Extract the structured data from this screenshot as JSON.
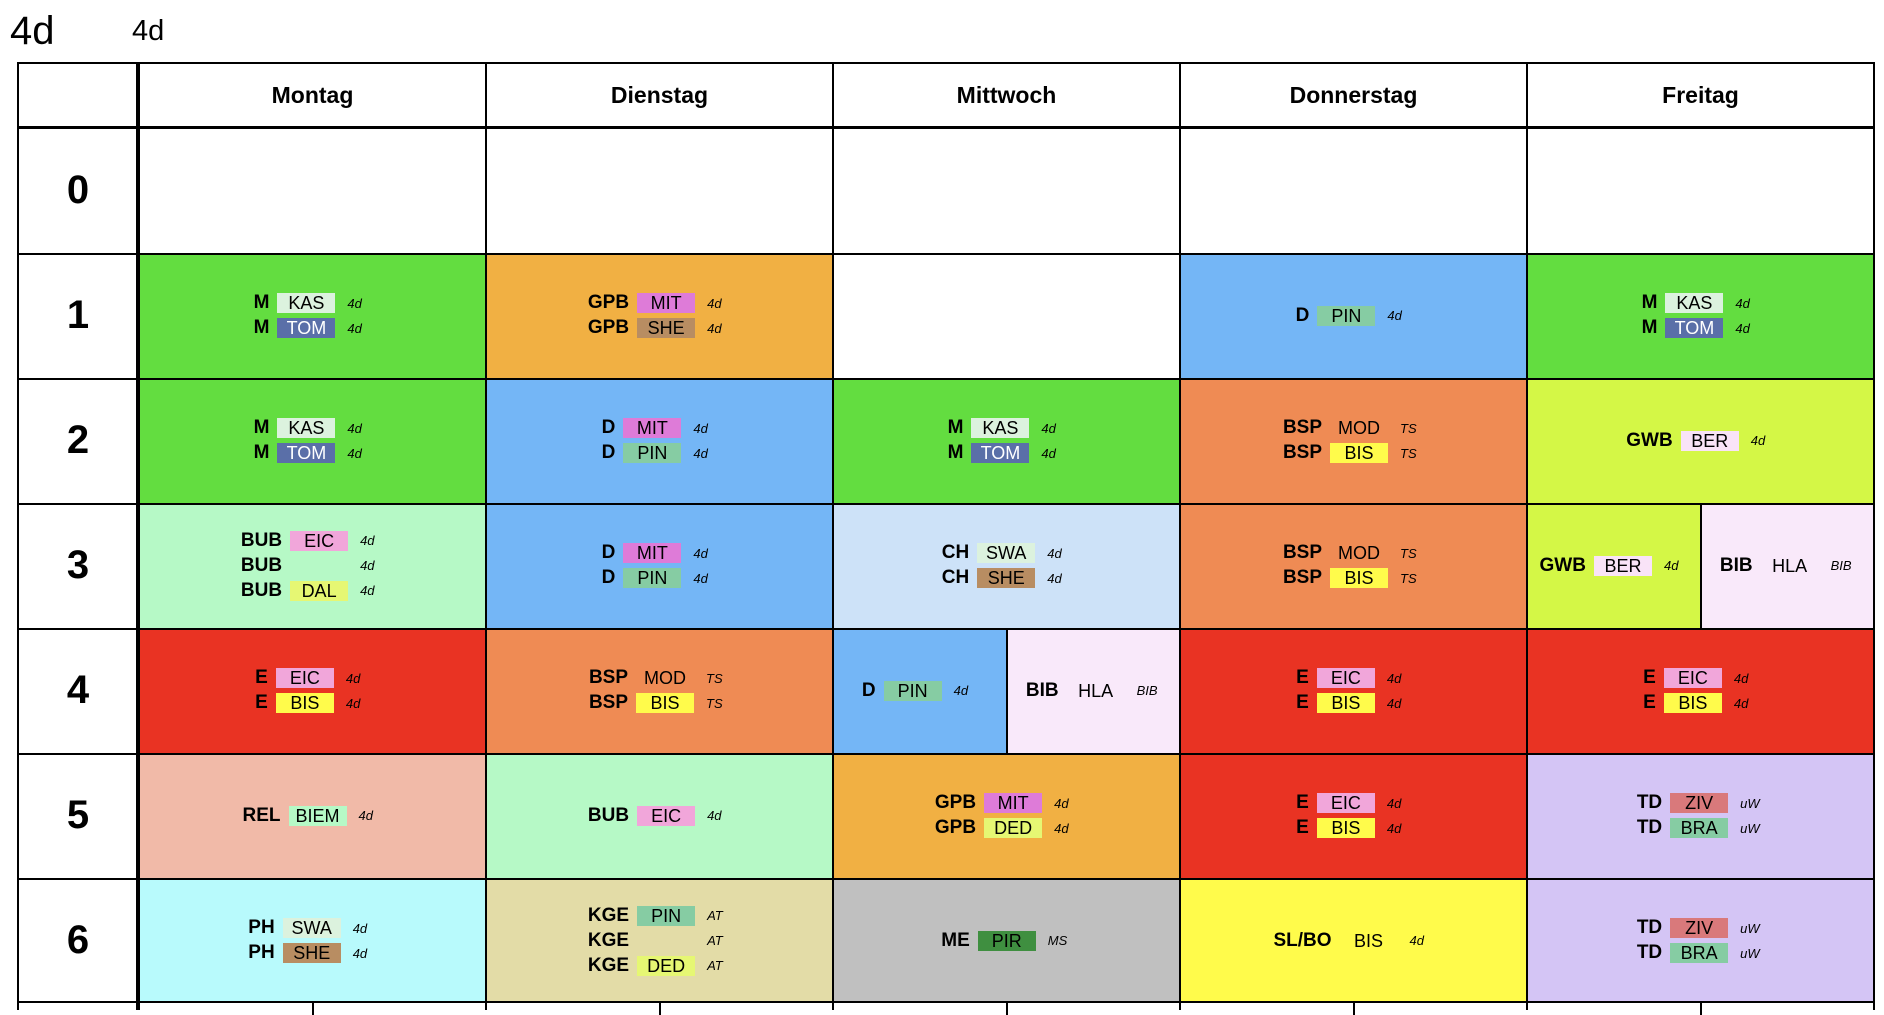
{
  "header": {
    "class_big": "4d",
    "class_small": "4d"
  },
  "days": [
    "Montag",
    "Dienstag",
    "Mittwoch",
    "Donnerstag",
    "Freitag"
  ],
  "periods": [
    "0",
    "1",
    "2",
    "3",
    "4",
    "5",
    "6"
  ],
  "colors": {
    "math_green": "#63dd40",
    "gpb_orange": "#f1b043",
    "deutsch_blue": "#74b6f6",
    "bsp_orange": "#ef8b54",
    "gwb_yellowgreen": "#d4f746",
    "bub_mint": "#b6f9c6",
    "ch_lightblue": "#cde2f8",
    "bib_pink": "#f9e9fa",
    "english_red": "#e93323",
    "rel_salmon": "#f1baa8",
    "td_lavender": "#d4c5f5",
    "ph_cyan": "#b8fafc",
    "kge_khaki": "#e3dca7",
    "me_grey": "#c0c0c0",
    "slbo_yellow": "#fffb4b"
  },
  "teacher_colors": {
    "KAS": "#dcf2de",
    "TOM": "#5a6fa8",
    "MIT": "#de7bd8",
    "SHE": "#b88d62",
    "PIN": "#86cca3",
    "EIC": "#f1a6da",
    "DAL": "#e6f773",
    "BIS": "#fffb4b",
    "SWA": "#dcf2de",
    "BER": "#f9e3f7",
    "BIEM": "#b6f9c6",
    "DED": "#e6f773",
    "ZIV": "#d9797b",
    "BRA": "#86cca3",
    "PIR": "#3f8f40",
    "MOD": "",
    "HLA": ""
  },
  "schedule": [
    [
      {
        "period": 0,
        "day": 0,
        "blocks": []
      },
      {
        "period": 0,
        "day": 1,
        "blocks": []
      },
      {
        "period": 0,
        "day": 2,
        "blocks": []
      },
      {
        "period": 0,
        "day": 3,
        "blocks": []
      },
      {
        "period": 0,
        "day": 4,
        "blocks": []
      }
    ],
    [
      {
        "period": 1,
        "day": 0,
        "blocks": [
          {
            "bg": "#63dd40",
            "lessons": [
              {
                "subject": "M",
                "teacher": "KAS",
                "group": "4d"
              },
              {
                "subject": "M",
                "teacher": "TOM",
                "group": "4d"
              }
            ]
          }
        ]
      },
      {
        "period": 1,
        "day": 1,
        "blocks": [
          {
            "bg": "#f1b043",
            "lessons": [
              {
                "subject": "GPB",
                "teacher": "MIT",
                "group": "4d"
              },
              {
                "subject": "GPB",
                "teacher": "SHE",
                "group": "4d"
              }
            ]
          }
        ]
      },
      {
        "period": 1,
        "day": 2,
        "blocks": []
      },
      {
        "period": 1,
        "day": 3,
        "blocks": [
          {
            "bg": "#74b6f6",
            "lessons": [
              {
                "subject": "D",
                "teacher": "PIN",
                "group": "4d"
              }
            ]
          }
        ]
      },
      {
        "period": 1,
        "day": 4,
        "blocks": [
          {
            "bg": "#63dd40",
            "lessons": [
              {
                "subject": "M",
                "teacher": "KAS",
                "group": "4d"
              },
              {
                "subject": "M",
                "teacher": "TOM",
                "group": "4d"
              }
            ]
          }
        ]
      }
    ],
    [
      {
        "period": 2,
        "day": 0,
        "blocks": [
          {
            "bg": "#63dd40",
            "lessons": [
              {
                "subject": "M",
                "teacher": "KAS",
                "group": "4d"
              },
              {
                "subject": "M",
                "teacher": "TOM",
                "group": "4d"
              }
            ]
          }
        ]
      },
      {
        "period": 2,
        "day": 1,
        "blocks": [
          {
            "bg": "#74b6f6",
            "lessons": [
              {
                "subject": "D",
                "teacher": "MIT",
                "group": "4d"
              },
              {
                "subject": "D",
                "teacher": "PIN",
                "group": "4d"
              }
            ]
          }
        ]
      },
      {
        "period": 2,
        "day": 2,
        "blocks": [
          {
            "bg": "#63dd40",
            "lessons": [
              {
                "subject": "M",
                "teacher": "KAS",
                "group": "4d"
              },
              {
                "subject": "M",
                "teacher": "TOM",
                "group": "4d"
              }
            ]
          }
        ]
      },
      {
        "period": 2,
        "day": 3,
        "blocks": [
          {
            "bg": "#ef8b54",
            "lessons": [
              {
                "subject": "BSP",
                "teacher": "MOD",
                "group": "TS"
              },
              {
                "subject": "BSP",
                "teacher": "BIS",
                "group": "TS"
              }
            ]
          }
        ]
      },
      {
        "period": 2,
        "day": 4,
        "blocks": [
          {
            "bg": "#d4f746",
            "lessons": [
              {
                "subject": "GWB",
                "teacher": "BER",
                "group": "4d"
              }
            ]
          }
        ]
      }
    ],
    [
      {
        "period": 3,
        "day": 0,
        "blocks": [
          {
            "bg": "#b6f9c6",
            "lessons": [
              {
                "subject": "BUB",
                "teacher": "EIC",
                "group": "4d"
              },
              {
                "subject": "BUB",
                "teacher": "",
                "group": "4d"
              },
              {
                "subject": "BUB",
                "teacher": "DAL",
                "group": "4d"
              }
            ]
          }
        ]
      },
      {
        "period": 3,
        "day": 1,
        "blocks": [
          {
            "bg": "#74b6f6",
            "lessons": [
              {
                "subject": "D",
                "teacher": "MIT",
                "group": "4d"
              },
              {
                "subject": "D",
                "teacher": "PIN",
                "group": "4d"
              }
            ]
          }
        ]
      },
      {
        "period": 3,
        "day": 2,
        "blocks": [
          {
            "bg": "#cde2f8",
            "lessons": [
              {
                "subject": "CH",
                "teacher": "SWA",
                "group": "4d"
              },
              {
                "subject": "CH",
                "teacher": "SHE",
                "group": "4d"
              }
            ]
          }
        ]
      },
      {
        "period": 3,
        "day": 3,
        "blocks": [
          {
            "bg": "#ef8b54",
            "lessons": [
              {
                "subject": "BSP",
                "teacher": "MOD",
                "group": "TS"
              },
              {
                "subject": "BSP",
                "teacher": "BIS",
                "group": "TS"
              }
            ]
          }
        ]
      },
      {
        "period": 3,
        "day": 4,
        "blocks": [
          {
            "bg": "#d4f746",
            "lessons": [
              {
                "subject": "GWB",
                "teacher": "BER",
                "group": "4d"
              }
            ]
          },
          {
            "bg": "#f9e9fa",
            "lessons": [
              {
                "subject": "BIB",
                "teacher": "HLA",
                "group": "BIB"
              }
            ]
          }
        ]
      }
    ],
    [
      {
        "period": 4,
        "day": 0,
        "blocks": [
          {
            "bg": "#e93323",
            "lessons": [
              {
                "subject": "E",
                "teacher": "EIC",
                "group": "4d"
              },
              {
                "subject": "E",
                "teacher": "BIS",
                "group": "4d"
              }
            ]
          }
        ]
      },
      {
        "period": 4,
        "day": 1,
        "blocks": [
          {
            "bg": "#ef8b54",
            "lessons": [
              {
                "subject": "BSP",
                "teacher": "MOD",
                "group": "TS"
              },
              {
                "subject": "BSP",
                "teacher": "BIS",
                "group": "TS"
              }
            ]
          }
        ]
      },
      {
        "period": 4,
        "day": 2,
        "blocks": [
          {
            "bg": "#74b6f6",
            "lessons": [
              {
                "subject": "D",
                "teacher": "PIN",
                "group": "4d"
              }
            ]
          },
          {
            "bg": "#f9e9fa",
            "lessons": [
              {
                "subject": "BIB",
                "teacher": "HLA",
                "group": "BIB"
              }
            ]
          }
        ]
      },
      {
        "period": 4,
        "day": 3,
        "blocks": [
          {
            "bg": "#e93323",
            "lessons": [
              {
                "subject": "E",
                "teacher": "EIC",
                "group": "4d"
              },
              {
                "subject": "E",
                "teacher": "BIS",
                "group": "4d"
              }
            ]
          }
        ]
      },
      {
        "period": 4,
        "day": 4,
        "blocks": [
          {
            "bg": "#e93323",
            "lessons": [
              {
                "subject": "E",
                "teacher": "EIC",
                "group": "4d"
              },
              {
                "subject": "E",
                "teacher": "BIS",
                "group": "4d"
              }
            ]
          }
        ]
      }
    ],
    [
      {
        "period": 5,
        "day": 0,
        "blocks": [
          {
            "bg": "#f1baa8",
            "lessons": [
              {
                "subject": "REL",
                "teacher": "BIEM",
                "group": "4d"
              }
            ]
          }
        ]
      },
      {
        "period": 5,
        "day": 1,
        "blocks": [
          {
            "bg": "#b6f9c6",
            "lessons": [
              {
                "subject": "BUB",
                "teacher": "EIC",
                "group": "4d"
              }
            ]
          }
        ]
      },
      {
        "period": 5,
        "day": 2,
        "blocks": [
          {
            "bg": "#f1b043",
            "lessons": [
              {
                "subject": "GPB",
                "teacher": "MIT",
                "group": "4d"
              },
              {
                "subject": "GPB",
                "teacher": "DED",
                "group": "4d"
              }
            ]
          }
        ]
      },
      {
        "period": 5,
        "day": 3,
        "blocks": [
          {
            "bg": "#e93323",
            "lessons": [
              {
                "subject": "E",
                "teacher": "EIC",
                "group": "4d"
              },
              {
                "subject": "E",
                "teacher": "BIS",
                "group": "4d"
              }
            ]
          }
        ]
      },
      {
        "period": 5,
        "day": 4,
        "blocks": [
          {
            "bg": "#d4c5f5",
            "lessons": [
              {
                "subject": "TD",
                "teacher": "ZIV",
                "group": "uW"
              },
              {
                "subject": "TD",
                "teacher": "BRA",
                "group": "uW"
              }
            ]
          }
        ]
      }
    ],
    [
      {
        "period": 6,
        "day": 0,
        "blocks": [
          {
            "bg": "#b8fafc",
            "lessons": [
              {
                "subject": "PH",
                "teacher": "SWA",
                "group": "4d"
              },
              {
                "subject": "PH",
                "teacher": "SHE",
                "group": "4d"
              }
            ]
          }
        ]
      },
      {
        "period": 6,
        "day": 1,
        "blocks": [
          {
            "bg": "#e3dca7",
            "lessons": [
              {
                "subject": "KGE",
                "teacher": "PIN",
                "group": "AT"
              },
              {
                "subject": "KGE",
                "teacher": "",
                "group": "AT"
              },
              {
                "subject": "KGE",
                "teacher": "DED",
                "group": "AT"
              }
            ]
          }
        ]
      },
      {
        "period": 6,
        "day": 2,
        "blocks": [
          {
            "bg": "#c0c0c0",
            "lessons": [
              {
                "subject": "ME",
                "teacher": "PIR",
                "group": "MS"
              }
            ]
          }
        ]
      },
      {
        "period": 6,
        "day": 3,
        "blocks": [
          {
            "bg": "#fffb4b",
            "lessons": [
              {
                "subject": "SL/BO",
                "teacher": "BIS",
                "group": "4d"
              }
            ]
          }
        ]
      },
      {
        "period": 6,
        "day": 4,
        "blocks": [
          {
            "bg": "#d4c5f5",
            "lessons": [
              {
                "subject": "TD",
                "teacher": "ZIV",
                "group": "uW"
              },
              {
                "subject": "TD",
                "teacher": "BRA",
                "group": "uW"
              }
            ]
          }
        ]
      }
    ]
  ]
}
